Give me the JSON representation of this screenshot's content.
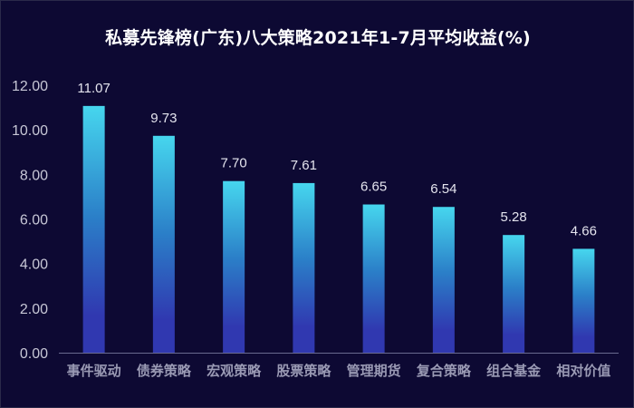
{
  "chart_data": {
    "type": "bar",
    "title": "私募先锋榜(广东)八大策略2021年1-7月平均收益(%)",
    "categories": [
      "事件驱动",
      "债券策略",
      "宏观策略",
      "股票策略",
      "管理期货",
      "复合策略",
      "组合基金",
      "相对价值"
    ],
    "values": [
      11.07,
      9.73,
      7.7,
      7.61,
      6.65,
      6.54,
      5.28,
      4.66
    ],
    "data_labels": [
      "11.07",
      "9.73",
      "7.70",
      "7.61",
      "6.65",
      "6.54",
      "5.28",
      "4.66"
    ],
    "ylim": [
      0,
      12
    ],
    "yticks": [
      "0.00",
      "2.00",
      "4.00",
      "6.00",
      "8.00",
      "10.00",
      "12.00"
    ],
    "grid": false,
    "legend": "none",
    "colors": {
      "background": "#0d0933",
      "bar_top": "#46d6ee",
      "bar_mid": "#2b7fc8",
      "bar_bottom": "#3038b0",
      "axis": "#6a6a90",
      "title": "#ffffff"
    }
  }
}
